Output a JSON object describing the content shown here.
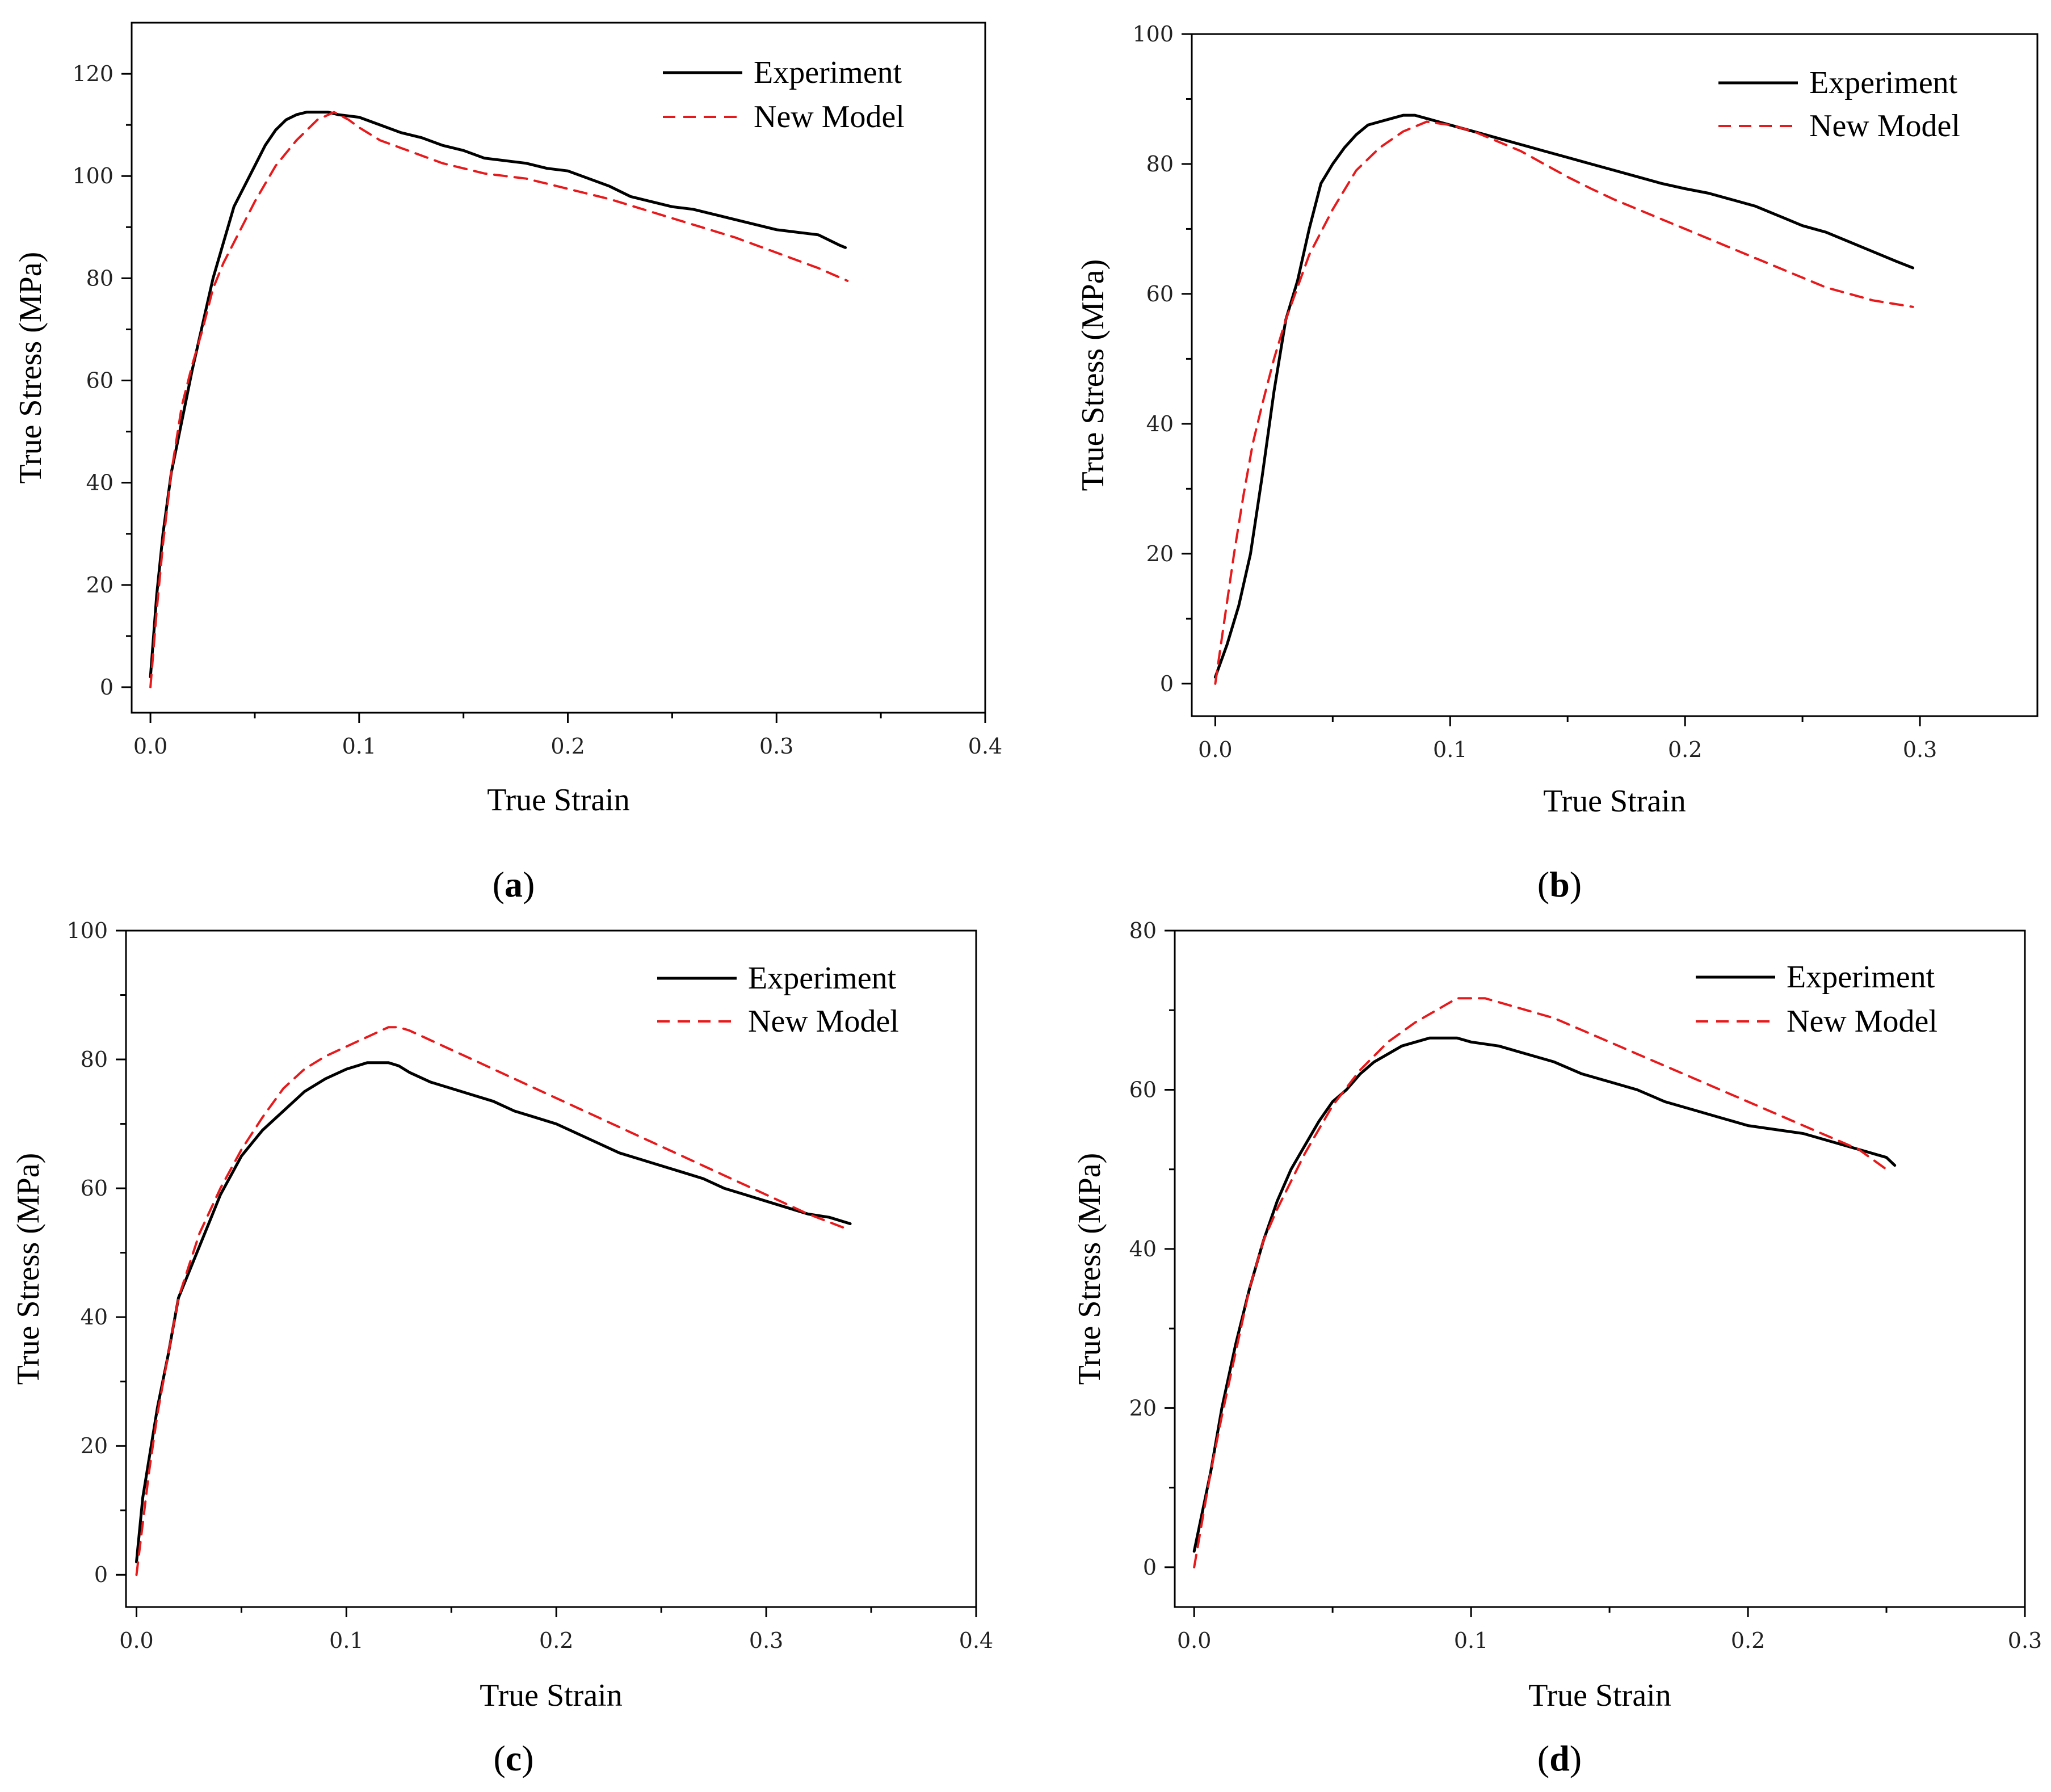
{
  "figure": {
    "colors": {
      "experiment": "#000000",
      "model": "#e8191b",
      "axis": "#000000"
    }
  },
  "chart_data": [
    {
      "type": "line",
      "panel_label": "a",
      "xlabel": "True Strain",
      "ylabel": "True Stress (MPa)",
      "xlim": [
        -0.009,
        0.4
      ],
      "ylim": [
        -5,
        130
      ],
      "xticks": [
        0.0,
        0.1,
        0.2,
        0.3,
        0.4
      ],
      "xtick_labels": [
        "0.0",
        "0.1",
        "0.2",
        "0.3",
        "0.4"
      ],
      "yticks": [
        0,
        20,
        40,
        60,
        80,
        100,
        120
      ],
      "ytick_labels": [
        "0",
        "20",
        "40",
        "60",
        "80",
        "100",
        "120"
      ],
      "legend": [
        "Experiment",
        "New Model"
      ],
      "series": [
        {
          "name": "Experiment",
          "style": "solid",
          "x": [
            0.0,
            0.003,
            0.006,
            0.01,
            0.015,
            0.02,
            0.025,
            0.03,
            0.035,
            0.04,
            0.045,
            0.05,
            0.055,
            0.06,
            0.065,
            0.07,
            0.075,
            0.08,
            0.085,
            0.09,
            0.1,
            0.11,
            0.12,
            0.13,
            0.14,
            0.15,
            0.16,
            0.17,
            0.18,
            0.19,
            0.2,
            0.21,
            0.22,
            0.23,
            0.24,
            0.25,
            0.26,
            0.27,
            0.28,
            0.29,
            0.3,
            0.31,
            0.32,
            0.325,
            0.33,
            0.333
          ],
          "y": [
            2,
            18,
            30,
            42,
            52,
            62,
            71,
            80,
            87,
            94,
            98,
            102,
            106,
            109,
            111,
            112,
            112.5,
            112.5,
            112.5,
            112,
            111.5,
            110,
            108.5,
            107.5,
            106,
            105,
            103.5,
            103,
            102.5,
            101.5,
            101,
            99.5,
            98,
            96,
            95,
            94,
            93.5,
            92.5,
            91.5,
            90.5,
            89.5,
            89,
            88.5,
            87.5,
            86.5,
            86
          ]
        },
        {
          "name": "New Model",
          "style": "dashed",
          "x": [
            0.0,
            0.003,
            0.006,
            0.01,
            0.015,
            0.02,
            0.025,
            0.03,
            0.035,
            0.04,
            0.05,
            0.06,
            0.07,
            0.08,
            0.088,
            0.095,
            0.1,
            0.11,
            0.12,
            0.13,
            0.14,
            0.15,
            0.16,
            0.17,
            0.18,
            0.19,
            0.2,
            0.22,
            0.24,
            0.26,
            0.28,
            0.3,
            0.32,
            0.334
          ],
          "y": [
            0,
            15,
            28,
            42,
            55,
            63,
            70,
            78,
            83,
            87,
            95,
            102,
            107,
            111,
            112.5,
            111,
            109.5,
            107,
            105.5,
            104,
            102.5,
            101.5,
            100.5,
            100,
            99.5,
            98.5,
            97.5,
            95.5,
            93,
            90.5,
            88,
            85,
            82,
            79.5
          ]
        }
      ]
    },
    {
      "type": "line",
      "panel_label": "b",
      "xlabel": "True Strain",
      "ylabel": "True Stress (MPa)",
      "xlim": [
        -0.01,
        0.35
      ],
      "ylim": [
        -5,
        100
      ],
      "xticks": [
        0.0,
        0.1,
        0.2,
        0.3
      ],
      "xtick_labels": [
        "0.0",
        "0.1",
        "0.2",
        "0.3"
      ],
      "yticks": [
        0,
        20,
        40,
        60,
        80,
        100
      ],
      "ytick_labels": [
        "0",
        "20",
        "40",
        "60",
        "80",
        "100"
      ],
      "legend": [
        "Experiment",
        "New Model"
      ],
      "series": [
        {
          "name": "Experiment",
          "style": "solid",
          "x": [
            0.0,
            0.005,
            0.01,
            0.015,
            0.02,
            0.025,
            0.03,
            0.035,
            0.04,
            0.045,
            0.05,
            0.055,
            0.06,
            0.065,
            0.07,
            0.075,
            0.08,
            0.085,
            0.09,
            0.1,
            0.11,
            0.12,
            0.13,
            0.14,
            0.15,
            0.16,
            0.17,
            0.18,
            0.19,
            0.2,
            0.21,
            0.22,
            0.23,
            0.24,
            0.25,
            0.26,
            0.27,
            0.28,
            0.29,
            0.297
          ],
          "y": [
            1,
            6,
            12,
            20,
            32,
            45,
            56,
            62,
            70,
            77,
            80,
            82.5,
            84.5,
            86,
            86.5,
            87,
            87.5,
            87.5,
            87,
            86,
            85,
            84,
            83,
            82,
            81,
            80,
            79,
            78,
            77,
            76.2,
            75.5,
            74.5,
            73.5,
            72,
            70.5,
            69.5,
            68,
            66.5,
            65,
            64
          ]
        },
        {
          "name": "New Model",
          "style": "dashed",
          "x": [
            0.0,
            0.004,
            0.008,
            0.012,
            0.016,
            0.02,
            0.025,
            0.03,
            0.04,
            0.05,
            0.06,
            0.07,
            0.08,
            0.09,
            0.1,
            0.11,
            0.12,
            0.13,
            0.14,
            0.15,
            0.16,
            0.17,
            0.18,
            0.19,
            0.2,
            0.21,
            0.22,
            0.24,
            0.26,
            0.28,
            0.297
          ],
          "y": [
            0,
            10,
            20,
            29,
            37,
            43,
            50,
            56,
            66,
            73,
            79,
            82.5,
            85,
            86.5,
            86,
            85,
            83.5,
            82,
            80,
            78,
            76.2,
            74.5,
            73,
            71.5,
            70,
            68.5,
            67,
            64,
            61,
            59,
            58
          ]
        }
      ]
    },
    {
      "type": "line",
      "panel_label": "c",
      "xlabel": "True Strain",
      "ylabel": "True Stress (MPa)",
      "xlim": [
        -0.005,
        0.4
      ],
      "ylim": [
        -5,
        100
      ],
      "xticks": [
        0.0,
        0.1,
        0.2,
        0.3,
        0.4
      ],
      "xtick_labels": [
        "0.0",
        "0.1",
        "0.2",
        "0.3",
        "0.4"
      ],
      "yticks": [
        0,
        20,
        40,
        60,
        80,
        100
      ],
      "ytick_labels": [
        "0",
        "20",
        "40",
        "60",
        "80",
        "100"
      ],
      "legend": [
        "Experiment",
        "New Model"
      ],
      "series": [
        {
          "name": "Experiment",
          "style": "solid",
          "x": [
            0.0,
            0.003,
            0.006,
            0.01,
            0.015,
            0.02,
            0.025,
            0.03,
            0.035,
            0.04,
            0.045,
            0.05,
            0.055,
            0.06,
            0.07,
            0.08,
            0.09,
            0.1,
            0.11,
            0.12,
            0.125,
            0.13,
            0.14,
            0.15,
            0.16,
            0.17,
            0.18,
            0.19,
            0.2,
            0.21,
            0.22,
            0.23,
            0.24,
            0.25,
            0.26,
            0.27,
            0.28,
            0.29,
            0.3,
            0.31,
            0.32,
            0.33,
            0.34
          ],
          "y": [
            2,
            12,
            18,
            26,
            34,
            43,
            47,
            51,
            55,
            59,
            62,
            65,
            67,
            69,
            72,
            75,
            77,
            78.5,
            79.5,
            79.5,
            79,
            78,
            76.5,
            75.5,
            74.5,
            73.5,
            72,
            71,
            70,
            68.5,
            67,
            65.5,
            64.5,
            63.5,
            62.5,
            61.5,
            60,
            59,
            58,
            57,
            56,
            55.5,
            54.5
          ]
        },
        {
          "name": "New Model",
          "style": "dashed",
          "x": [
            0.0,
            0.003,
            0.006,
            0.01,
            0.015,
            0.02,
            0.025,
            0.03,
            0.04,
            0.05,
            0.06,
            0.07,
            0.08,
            0.09,
            0.1,
            0.11,
            0.12,
            0.125,
            0.13,
            0.14,
            0.15,
            0.16,
            0.17,
            0.18,
            0.2,
            0.22,
            0.24,
            0.26,
            0.28,
            0.3,
            0.32,
            0.34
          ],
          "y": [
            0,
            8,
            16,
            25,
            34,
            43,
            48,
            53,
            60,
            66,
            71,
            75.5,
            78.5,
            80.5,
            82,
            83.5,
            85,
            85,
            84.5,
            83,
            81.5,
            80,
            78.5,
            77,
            74,
            71,
            68,
            65,
            62,
            59,
            56,
            53.5
          ]
        }
      ]
    },
    {
      "type": "line",
      "panel_label": "d",
      "xlabel": "True Strain",
      "ylabel": "True Stress (MPa)",
      "xlim": [
        -0.007,
        0.3
      ],
      "ylim": [
        -5,
        80
      ],
      "xticks": [
        0.0,
        0.1,
        0.2,
        0.3
      ],
      "xtick_labels": [
        "0.0",
        "0.1",
        "0.2",
        "0.3"
      ],
      "yticks": [
        0,
        20,
        40,
        60,
        80
      ],
      "ytick_labels": [
        "0",
        "20",
        "40",
        "60",
        "80"
      ],
      "legend": [
        "Experiment",
        "New Model"
      ],
      "series": [
        {
          "name": "Experiment",
          "style": "solid",
          "x": [
            0.0,
            0.003,
            0.006,
            0.01,
            0.015,
            0.02,
            0.025,
            0.03,
            0.035,
            0.04,
            0.045,
            0.05,
            0.055,
            0.06,
            0.065,
            0.07,
            0.075,
            0.08,
            0.085,
            0.09,
            0.095,
            0.1,
            0.11,
            0.12,
            0.13,
            0.14,
            0.15,
            0.16,
            0.17,
            0.18,
            0.19,
            0.2,
            0.21,
            0.22,
            0.23,
            0.24,
            0.25,
            0.253
          ],
          "y": [
            2,
            7,
            12,
            20,
            28,
            35,
            41,
            46,
            50,
            53,
            56,
            58.5,
            60,
            62,
            63.5,
            64.5,
            65.5,
            66,
            66.5,
            66.5,
            66.5,
            66,
            65.5,
            64.5,
            63.5,
            62,
            61,
            60,
            58.5,
            57.5,
            56.5,
            55.5,
            55,
            54.5,
            53.5,
            52.5,
            51.5,
            50.5
          ]
        },
        {
          "name": "New Model",
          "style": "dashed",
          "x": [
            0.0,
            0.003,
            0.006,
            0.01,
            0.015,
            0.02,
            0.025,
            0.03,
            0.04,
            0.05,
            0.06,
            0.07,
            0.08,
            0.09,
            0.095,
            0.1,
            0.105,
            0.11,
            0.12,
            0.13,
            0.14,
            0.15,
            0.16,
            0.17,
            0.18,
            0.19,
            0.2,
            0.21,
            0.22,
            0.23,
            0.24,
            0.25
          ],
          "y": [
            0,
            6,
            12,
            19,
            27,
            35,
            41,
            45,
            52,
            58,
            62.5,
            66,
            68.5,
            70.5,
            71.5,
            71.5,
            71.5,
            71,
            70,
            69,
            67.5,
            66,
            64.5,
            63,
            61.5,
            60,
            58.5,
            57,
            55.5,
            54,
            52.5,
            50
          ]
        }
      ]
    }
  ]
}
